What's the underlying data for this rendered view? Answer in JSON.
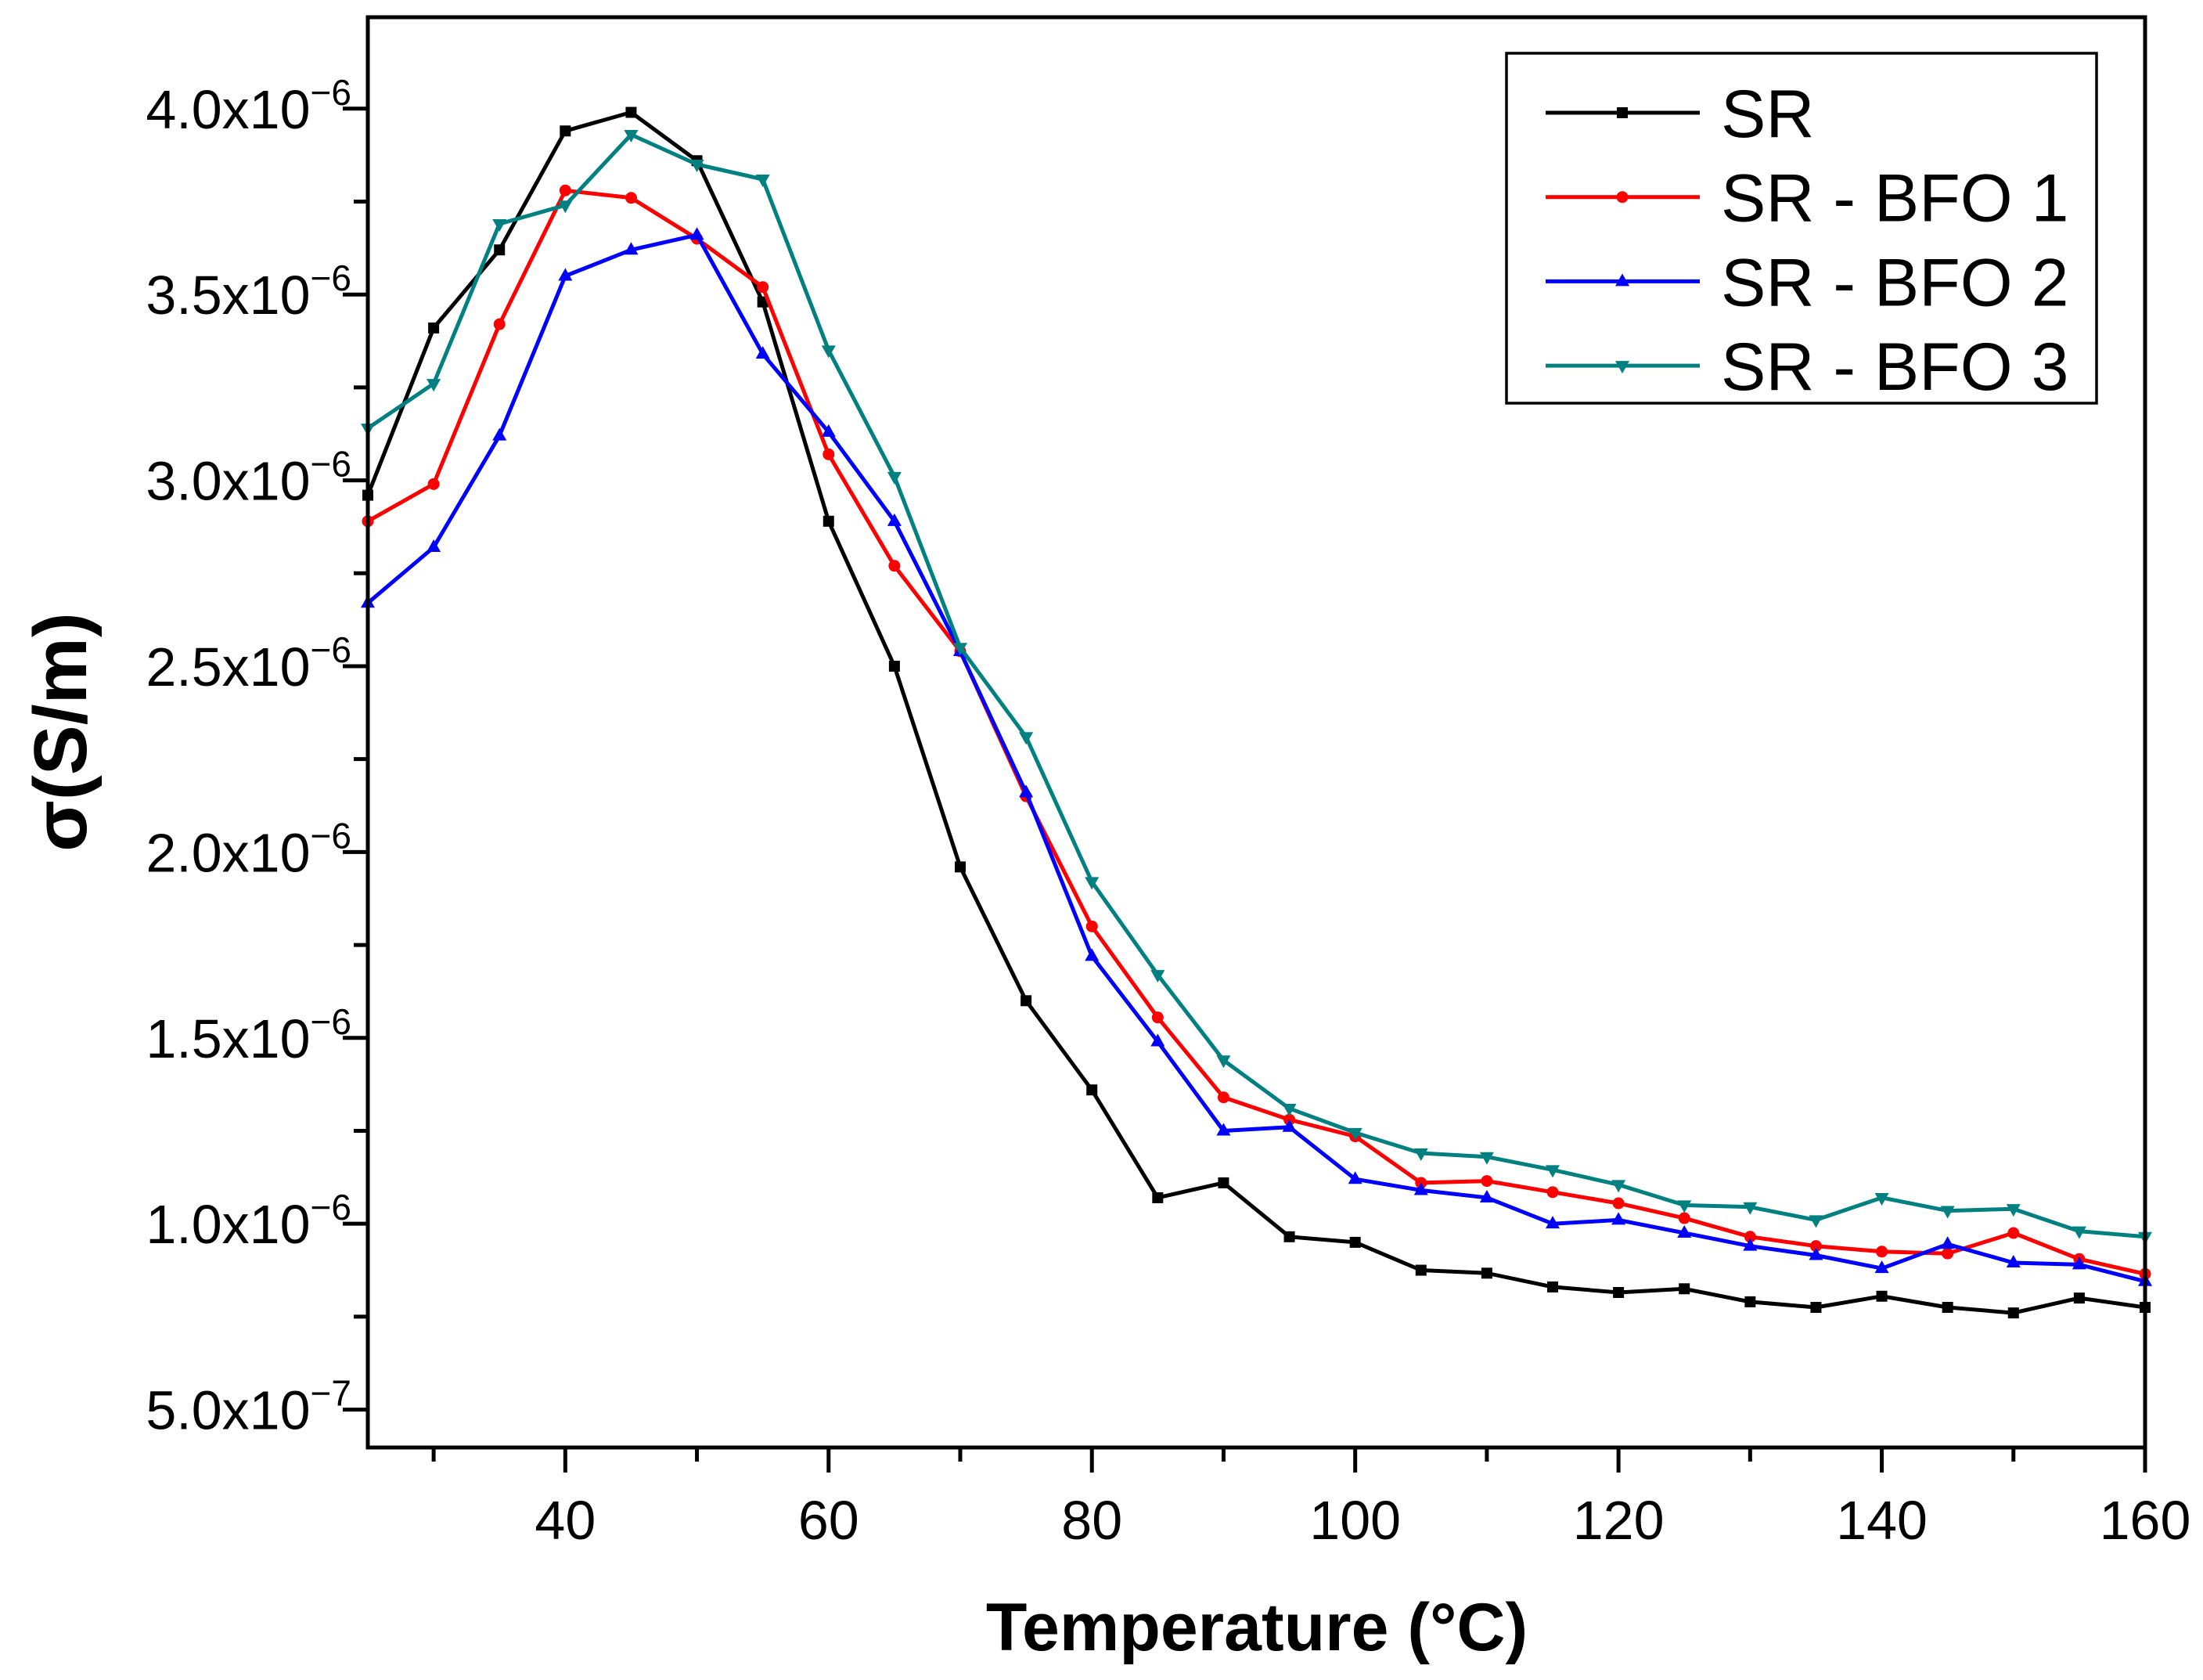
{
  "chart_data": {
    "type": "line",
    "xlabel": "Temperature (°C)",
    "ylabel": "σ(S/m)",
    "xlim": [
      25,
      160
    ],
    "ylim": [
      3.98e-07,
      4.246e-06
    ],
    "xticks": [
      40,
      60,
      80,
      100,
      120,
      140,
      160
    ],
    "xtick_labels": [
      "40",
      "60",
      "80",
      "100",
      "120",
      "140",
      "160"
    ],
    "x_minor_ticks": [
      30,
      50,
      70,
      90,
      110,
      130,
      150
    ],
    "yticks": [
      {
        "value": 5e-07,
        "base": "5.0x10",
        "exp": "−7"
      },
      {
        "value": 1e-06,
        "base": "1.0x10",
        "exp": "−6"
      },
      {
        "value": 1.5e-06,
        "base": "1.5x10",
        "exp": "−6"
      },
      {
        "value": 2e-06,
        "base": "2.0x10",
        "exp": "−6"
      },
      {
        "value": 2.5e-06,
        "base": "2.5x10",
        "exp": "−6"
      },
      {
        "value": 3e-06,
        "base": "3.0x10",
        "exp": "−6"
      },
      {
        "value": 3.5e-06,
        "base": "3.5x10",
        "exp": "−6"
      },
      {
        "value": 4e-06,
        "base": "4.0x10",
        "exp": "−6"
      }
    ],
    "y_minor_ticks": [
      7.5e-07,
      1.25e-06,
      1.75e-06,
      2.25e-06,
      2.75e-06,
      3.25e-06,
      3.75e-06
    ],
    "x": [
      25,
      30,
      35,
      40,
      45,
      50,
      55,
      60,
      65,
      70,
      75,
      80,
      85,
      90,
      95,
      100,
      105,
      110,
      115,
      120,
      125,
      130,
      135,
      140,
      145,
      150,
      155,
      160
    ],
    "series": [
      {
        "name": "SR",
        "color": "#000000",
        "marker": "square",
        "values": [
          2.96e-06,
          3.41e-06,
          3.62e-06,
          3.94e-06,
          3.99e-06,
          3.86e-06,
          3.48e-06,
          2.89e-06,
          2.5e-06,
          1.96e-06,
          1.6e-06,
          1.36e-06,
          1.07e-06,
          1.11e-06,
          9.65e-07,
          9.5e-07,
          8.75e-07,
          8.67e-07,
          8.3e-07,
          8.15e-07,
          8.25e-07,
          7.9e-07,
          7.75e-07,
          8.05e-07,
          7.75e-07,
          7.6e-07,
          8e-07,
          7.75e-07
        ]
      },
      {
        "name": "SR - BFO 1",
        "color": "#ff0000",
        "marker": "circle",
        "values": [
          2.89e-06,
          2.99e-06,
          3.42e-06,
          3.78e-06,
          3.76e-06,
          3.65e-06,
          3.52e-06,
          3.07e-06,
          2.77e-06,
          2.54e-06,
          2.15e-06,
          1.8e-06,
          1.555e-06,
          1.34e-06,
          1.28e-06,
          1.235e-06,
          1.11e-06,
          1.115e-06,
          1.085e-06,
          1.055e-06,
          1.015e-06,
          9.65e-07,
          9.4e-07,
          9.25e-07,
          9.2e-07,
          9.75e-07,
          9.05e-07,
          8.65e-07
        ]
      },
      {
        "name": "SR - BFO 2",
        "color": "#0000ff",
        "marker": "triangle-up",
        "values": [
          2.67e-06,
          2.82e-06,
          3.12e-06,
          3.55e-06,
          3.62e-06,
          3.66e-06,
          3.34e-06,
          3.13e-06,
          2.89e-06,
          2.54e-06,
          2.16e-06,
          1.72e-06,
          1.49e-06,
          1.25e-06,
          1.26e-06,
          1.12e-06,
          1.09e-06,
          1.07e-06,
          1e-06,
          1.01e-06,
          9.75e-07,
          9.4e-07,
          9.15e-07,
          8.8e-07,
          9.45e-07,
          8.95e-07,
          8.9e-07,
          8.45e-07
        ]
      },
      {
        "name": "SR - BFO 3",
        "color": "#008080",
        "marker": "triangle-down",
        "values": [
          3.14e-06,
          3.26e-06,
          3.69e-06,
          3.74e-06,
          3.93e-06,
          3.85e-06,
          3.81e-06,
          3.35e-06,
          3.01e-06,
          2.55e-06,
          2.31e-06,
          1.92e-06,
          1.67e-06,
          1.44e-06,
          1.31e-06,
          1.245e-06,
          1.19e-06,
          1.18e-06,
          1.145e-06,
          1.105e-06,
          1.05e-06,
          1.045e-06,
          1.01e-06,
          1.07e-06,
          1.035e-06,
          1.04e-06,
          9.8e-07,
          9.65e-07
        ]
      }
    ],
    "legend": {
      "position": "top-right"
    }
  }
}
